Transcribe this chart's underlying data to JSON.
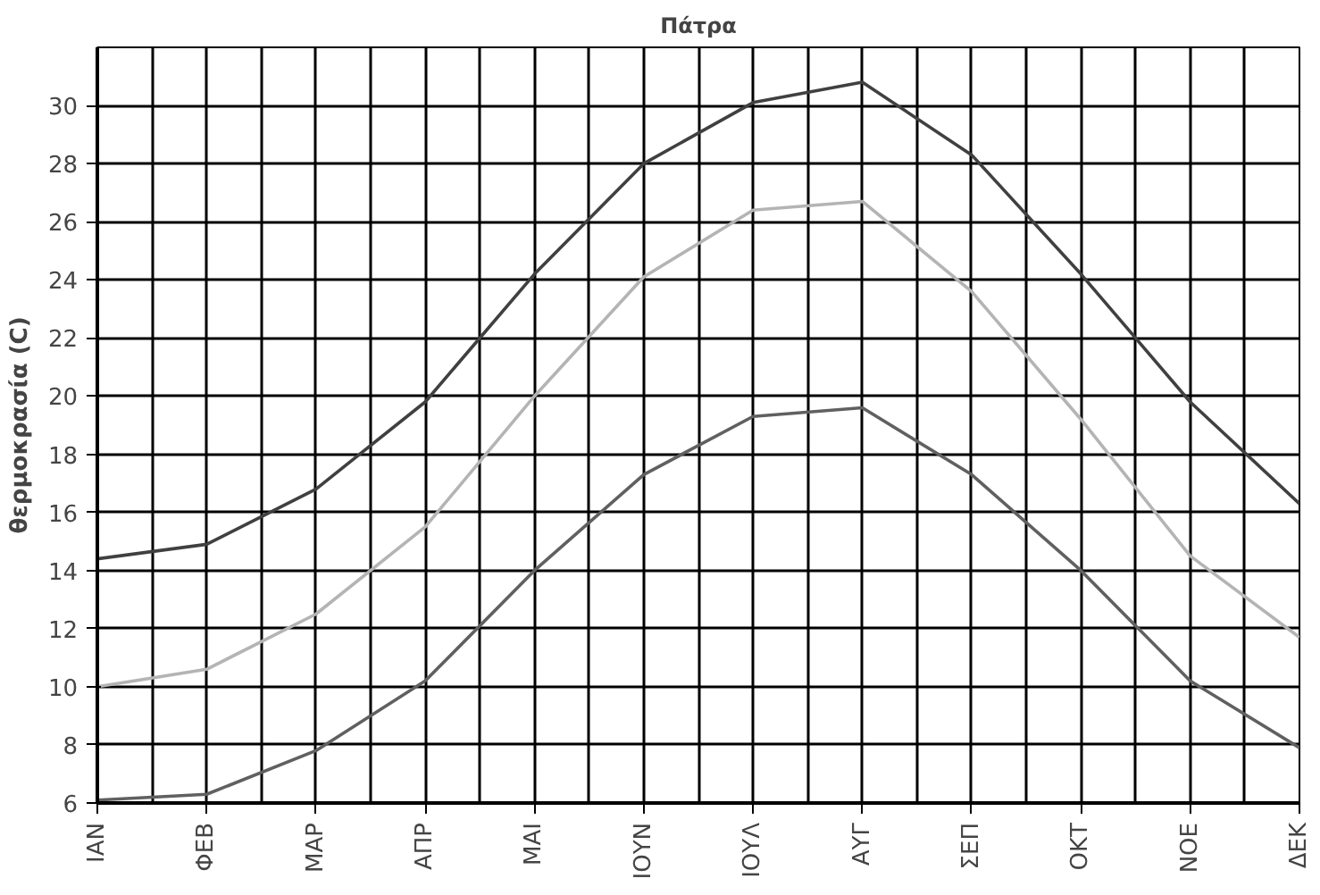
{
  "chart_data": {
    "type": "line",
    "title": "Πάτρα",
    "ylabel": "θερμοκρασία (C)",
    "categories": [
      "ΙΑΝ",
      "ΦΕΒ",
      "ΜΑΡ",
      "ΑΠΡ",
      "ΜΑΙ",
      "ΙΟΥΝ",
      "ΙΟΥΛ",
      "ΑΥΓ",
      "ΣΕΠ",
      "ΟΚΤ",
      "ΝΟΕ",
      "ΔΕΚ"
    ],
    "series": [
      {
        "color": "#404040",
        "values": [
          14.4,
          14.9,
          16.8,
          19.8,
          24.2,
          28.0,
          30.1,
          30.8,
          28.3,
          24.2,
          19.8,
          16.3
        ]
      },
      {
        "color": "#b4b4b4",
        "values": [
          10.0,
          10.6,
          12.5,
          15.5,
          20.0,
          24.1,
          26.4,
          26.7,
          23.6,
          19.2,
          14.5,
          11.7
        ]
      },
      {
        "color": "#606060",
        "values": [
          6.1,
          6.3,
          7.8,
          10.2,
          14.0,
          17.3,
          19.3,
          19.6,
          17.3,
          14.0,
          10.2,
          7.9
        ]
      }
    ],
    "ylim": [
      6,
      32
    ],
    "yticks": [
      6,
      8,
      10,
      12,
      14,
      16,
      18,
      20,
      22,
      24,
      26,
      28,
      30
    ],
    "grid": true
  }
}
